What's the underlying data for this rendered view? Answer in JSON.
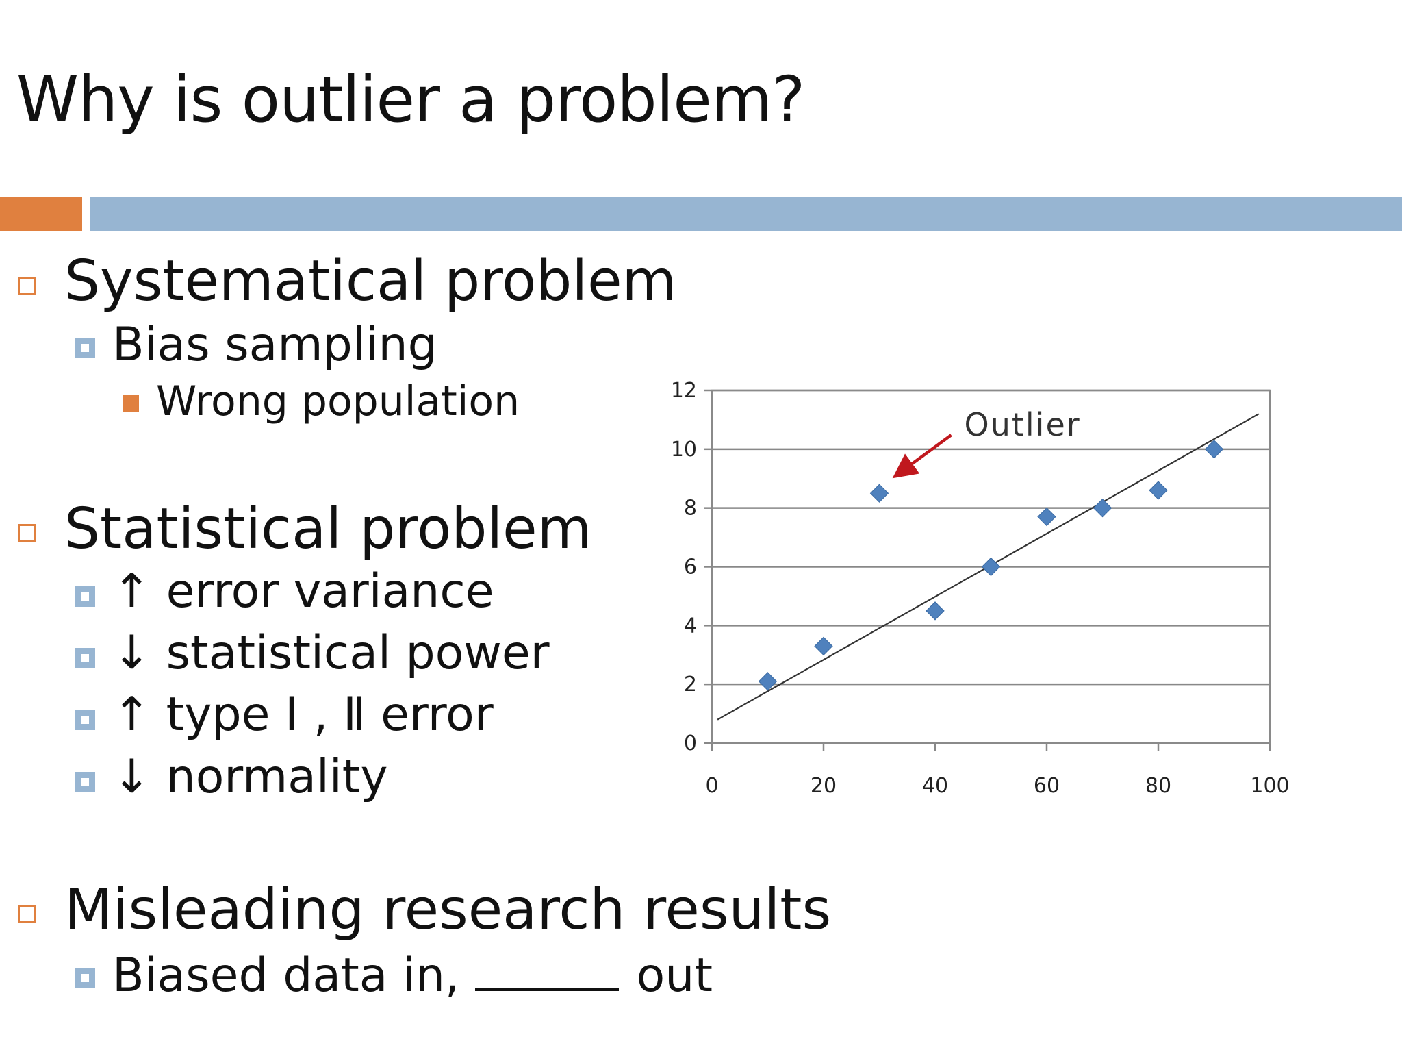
{
  "slide": {
    "title": "Why is outlier a problem?",
    "colors": {
      "accent_orange": "#e0803f",
      "accent_blue": "#97b5d2",
      "marker": "#4f81bd",
      "arrow": "#c0181e"
    },
    "sections": [
      {
        "heading": "Systematical problem",
        "items": [
          {
            "text": "Bias sampling",
            "subitems": [
              "Wrong population"
            ]
          }
        ]
      },
      {
        "heading": "Statistical problem",
        "items": [
          {
            "text": "↑ error variance"
          },
          {
            "text": "↓ statistical power"
          },
          {
            "text": "↑ type Ⅰ , Ⅱ error"
          },
          {
            "text": "↓ normality"
          }
        ]
      },
      {
        "heading": "Misleading research results",
        "items": [
          {
            "text_before": "Biased data in,",
            "text_after": "out"
          }
        ]
      }
    ]
  },
  "chart_data": {
    "type": "scatter",
    "x": [
      10,
      20,
      30,
      40,
      50,
      60,
      70,
      80,
      90
    ],
    "y": [
      2.1,
      3.3,
      8.5,
      4.5,
      6.0,
      7.7,
      8.0,
      8.6,
      10.0
    ],
    "trendline": {
      "x": [
        1,
        98
      ],
      "y": [
        0.8,
        11.2
      ]
    },
    "annotation": {
      "text": "Outlier",
      "points_to": {
        "x": 30,
        "y": 8.5
      }
    },
    "xlim": [
      0,
      100
    ],
    "ylim": [
      0,
      12
    ],
    "xticks": [
      0,
      20,
      40,
      60,
      80,
      100
    ],
    "yticks": [
      0,
      2,
      4,
      6,
      8,
      10,
      12
    ],
    "grid": "horizontal",
    "title": "",
    "xlabel": "",
    "ylabel": ""
  }
}
